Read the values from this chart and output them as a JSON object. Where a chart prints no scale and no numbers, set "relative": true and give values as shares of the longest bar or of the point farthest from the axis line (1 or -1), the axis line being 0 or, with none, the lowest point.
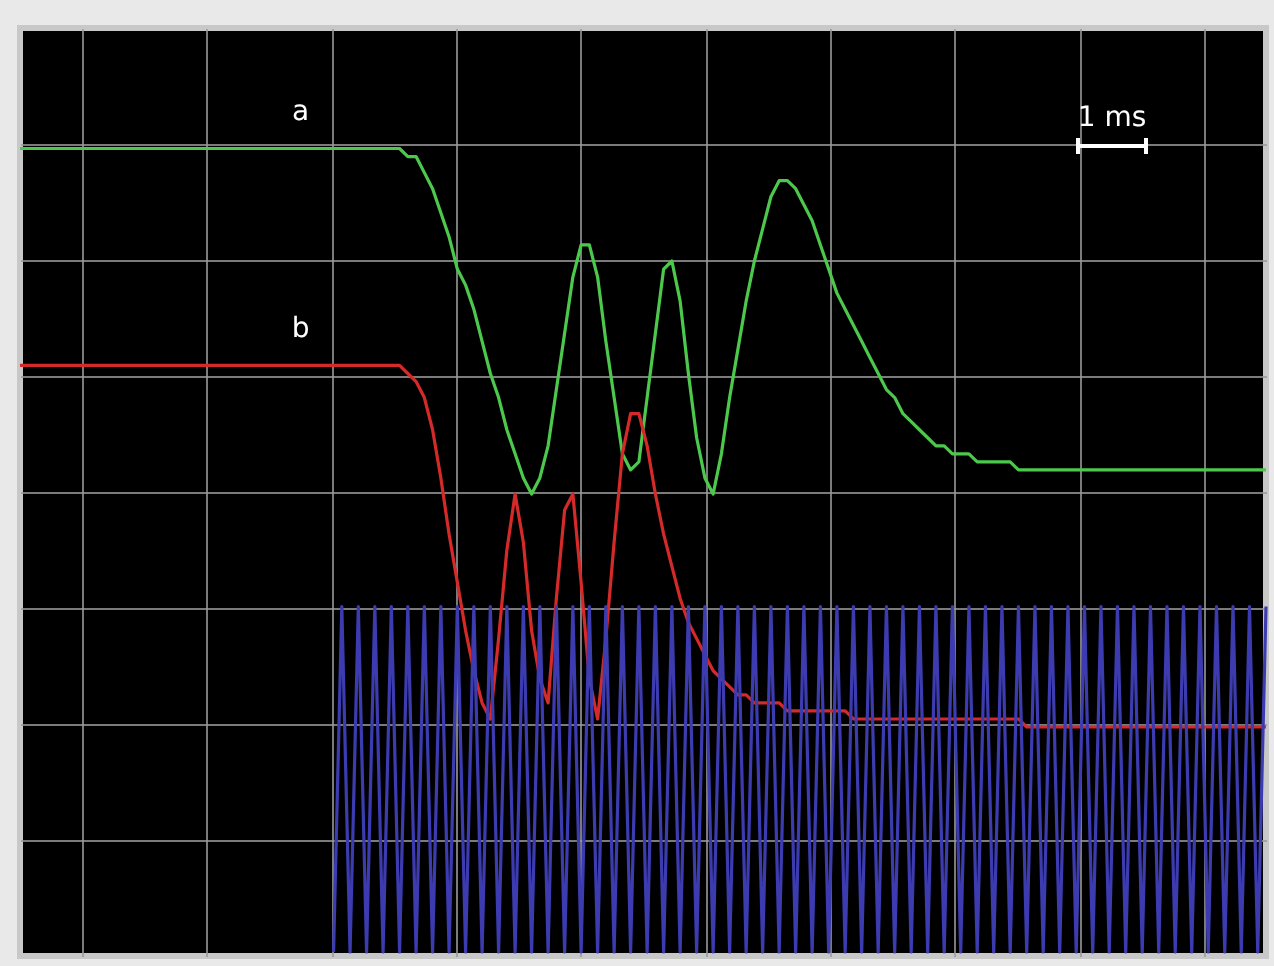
{
  "chart_data": {
    "type": "line",
    "relative": true,
    "grid": true,
    "marker": "none",
    "line_style": "solid",
    "annotations": [
      "1 ms"
    ],
    "categories": [
      null,
      null,
      null,
      null,
      null,
      null,
      null,
      null,
      null,
      null,
      null,
      null,
      null,
      null,
      null,
      null,
      null,
      null,
      null,
      null,
      null,
      null,
      null,
      null,
      null,
      null,
      null,
      null,
      null,
      null,
      null,
      null,
      null,
      null,
      null,
      null,
      null,
      null,
      null,
      null,
      null,
      null,
      null,
      null,
      null,
      null,
      null,
      null,
      null,
      null,
      null,
      null,
      null,
      null,
      null,
      null,
      null,
      null,
      null,
      null,
      null,
      null,
      null,
      null,
      null,
      null,
      null,
      null,
      null,
      null,
      null,
      null,
      null,
      null,
      null,
      null,
      null,
      null,
      null,
      null,
      null,
      null,
      null,
      null,
      null,
      null,
      null,
      null,
      null,
      null,
      null,
      null,
      null,
      null,
      null,
      null,
      null,
      null,
      null,
      null,
      null,
      null,
      null,
      null,
      null,
      null,
      null,
      null,
      null,
      null,
      null,
      null,
      null,
      null,
      null,
      null,
      null,
      null,
      null,
      null,
      null,
      null,
      null,
      null,
      null,
      null,
      null,
      null,
      null,
      null,
      null,
      null,
      null,
      null,
      null,
      null,
      null,
      null,
      null,
      null,
      null,
      null,
      null,
      null,
      null,
      null,
      null,
      null,
      null,
      null,
      null,
      null
    ],
    "series": [
      {
        "name": "a",
        "color": "#4cc94c",
        "values": [
          1,
          1,
          1,
          1,
          1,
          1,
          1,
          1,
          1,
          1,
          1,
          1,
          1,
          1,
          1,
          1,
          1,
          1,
          1,
          1,
          1,
          1,
          1,
          1,
          1,
          1,
          1,
          1,
          1,
          1,
          1,
          1,
          1,
          1,
          1,
          1,
          1,
          1,
          1,
          1,
          1,
          1,
          1,
          1,
          1,
          1,
          1,
          0.99,
          0.99,
          0.97,
          0.95,
          0.92,
          0.89,
          0.85,
          0.83,
          0.8,
          0.76,
          0.72,
          0.69,
          0.65,
          0.62,
          0.59,
          0.57,
          0.59,
          0.63,
          0.7,
          0.77,
          0.84,
          0.88,
          0.88,
          0.84,
          0.76,
          0.69,
          0.62,
          0.6,
          0.61,
          0.69,
          0.77,
          0.85,
          0.86,
          0.81,
          0.72,
          0.64,
          0.59,
          0.57,
          0.62,
          0.69,
          0.75,
          0.81,
          0.86,
          0.9,
          0.94,
          0.96,
          0.96,
          0.95,
          0.93,
          0.91,
          0.88,
          0.85,
          0.82,
          0.8,
          0.78,
          0.76,
          0.74,
          0.72,
          0.7,
          0.69,
          0.67,
          0.66,
          0.65,
          0.64,
          0.63,
          0.63,
          0.62,
          0.62,
          0.62,
          0.61,
          0.61,
          0.61,
          0.61,
          0.61,
          0.6,
          0.6,
          0.6,
          0.6,
          0.6,
          0.6,
          0.6,
          0.6,
          0.6,
          0.6,
          0.6,
          0.6,
          0.6,
          0.6,
          0.6,
          0.6,
          0.6,
          0.6,
          0.6,
          0.6,
          0.6,
          0.6,
          0.6,
          0.6,
          0.6,
          0.6,
          0.6,
          0.6,
          0.6,
          0.6,
          0.6
        ]
      },
      {
        "name": "b",
        "color": "#d42a2a",
        "values": [
          0.73,
          0.73,
          0.73,
          0.73,
          0.73,
          0.73,
          0.73,
          0.73,
          0.73,
          0.73,
          0.73,
          0.73,
          0.73,
          0.73,
          0.73,
          0.73,
          0.73,
          0.73,
          0.73,
          0.73,
          0.73,
          0.73,
          0.73,
          0.73,
          0.73,
          0.73,
          0.73,
          0.73,
          0.73,
          0.73,
          0.73,
          0.73,
          0.73,
          0.73,
          0.73,
          0.73,
          0.73,
          0.73,
          0.73,
          0.73,
          0.73,
          0.73,
          0.73,
          0.73,
          0.73,
          0.73,
          0.73,
          0.72,
          0.71,
          0.69,
          0.65,
          0.59,
          0.52,
          0.46,
          0.4,
          0.35,
          0.31,
          0.29,
          0.39,
          0.5,
          0.57,
          0.51,
          0.4,
          0.34,
          0.31,
          0.44,
          0.55,
          0.57,
          0.46,
          0.34,
          0.29,
          0.39,
          0.51,
          0.62,
          0.67,
          0.67,
          0.63,
          0.57,
          0.52,
          0.48,
          0.44,
          0.41,
          0.39,
          0.37,
          0.35,
          0.34,
          0.33,
          0.32,
          0.32,
          0.31,
          0.31,
          0.31,
          0.31,
          0.3,
          0.3,
          0.3,
          0.3,
          0.3,
          0.3,
          0.3,
          0.3,
          0.29,
          0.29,
          0.29,
          0.29,
          0.29,
          0.29,
          0.29,
          0.29,
          0.29,
          0.29,
          0.29,
          0.29,
          0.29,
          0.29,
          0.29,
          0.29,
          0.29,
          0.29,
          0.29,
          0.29,
          0.29,
          0.28,
          0.28,
          0.28,
          0.28,
          0.28,
          0.28,
          0.28,
          0.28,
          0.28,
          0.28,
          0.28,
          0.28,
          0.28,
          0.28,
          0.28,
          0.28,
          0.28,
          0.28,
          0.28,
          0.28,
          0.28,
          0.28,
          0.28,
          0.28,
          0.28,
          0.28,
          0.28,
          0.28,
          0.28,
          0.28
        ]
      },
      {
        "color": "#3c3cb0",
        "values": [
          null,
          null,
          null,
          null,
          null,
          null,
          null,
          null,
          null,
          null,
          null,
          null,
          null,
          null,
          null,
          null,
          null,
          null,
          null,
          null,
          null,
          null,
          null,
          null,
          null,
          null,
          null,
          null,
          null,
          null,
          null,
          null,
          null,
          null,
          null,
          null,
          null,
          null,
          0,
          0.43,
          0,
          0.43,
          0,
          0.43,
          0,
          0.43,
          0,
          0.43,
          0,
          0.43,
          0,
          0.43,
          0,
          0.43,
          0,
          0.43,
          0,
          0.43,
          0,
          0.43,
          0,
          0.43,
          0,
          0.43,
          0,
          0.43,
          0,
          0.43,
          0,
          0.43,
          0,
          0.43,
          0,
          0.43,
          0,
          0.43,
          0,
          0.43,
          0,
          0.43,
          0,
          0.43,
          0,
          0.43,
          0,
          0.43,
          0,
          0.43,
          0,
          0.43,
          0,
          0.43,
          0,
          0.43,
          0,
          0.43,
          0,
          0.43,
          0,
          0.43,
          0,
          0.43,
          0,
          0.43,
          0,
          0.43,
          0,
          0.43,
          0,
          0.43,
          0,
          0.43,
          0,
          0.43,
          0,
          0.43,
          0,
          0.43,
          0,
          0.43,
          0,
          0.43,
          0,
          0.43,
          0,
          0.43,
          0,
          0.43,
          0,
          0.43,
          0,
          0.43,
          0,
          0.43,
          0,
          0.43,
          0,
          0.43,
          0,
          0.43,
          0,
          0.43,
          0,
          0.43,
          0,
          0.43,
          0,
          0.43,
          0,
          0.43,
          0,
          0.43
        ]
      }
    ]
  }
}
